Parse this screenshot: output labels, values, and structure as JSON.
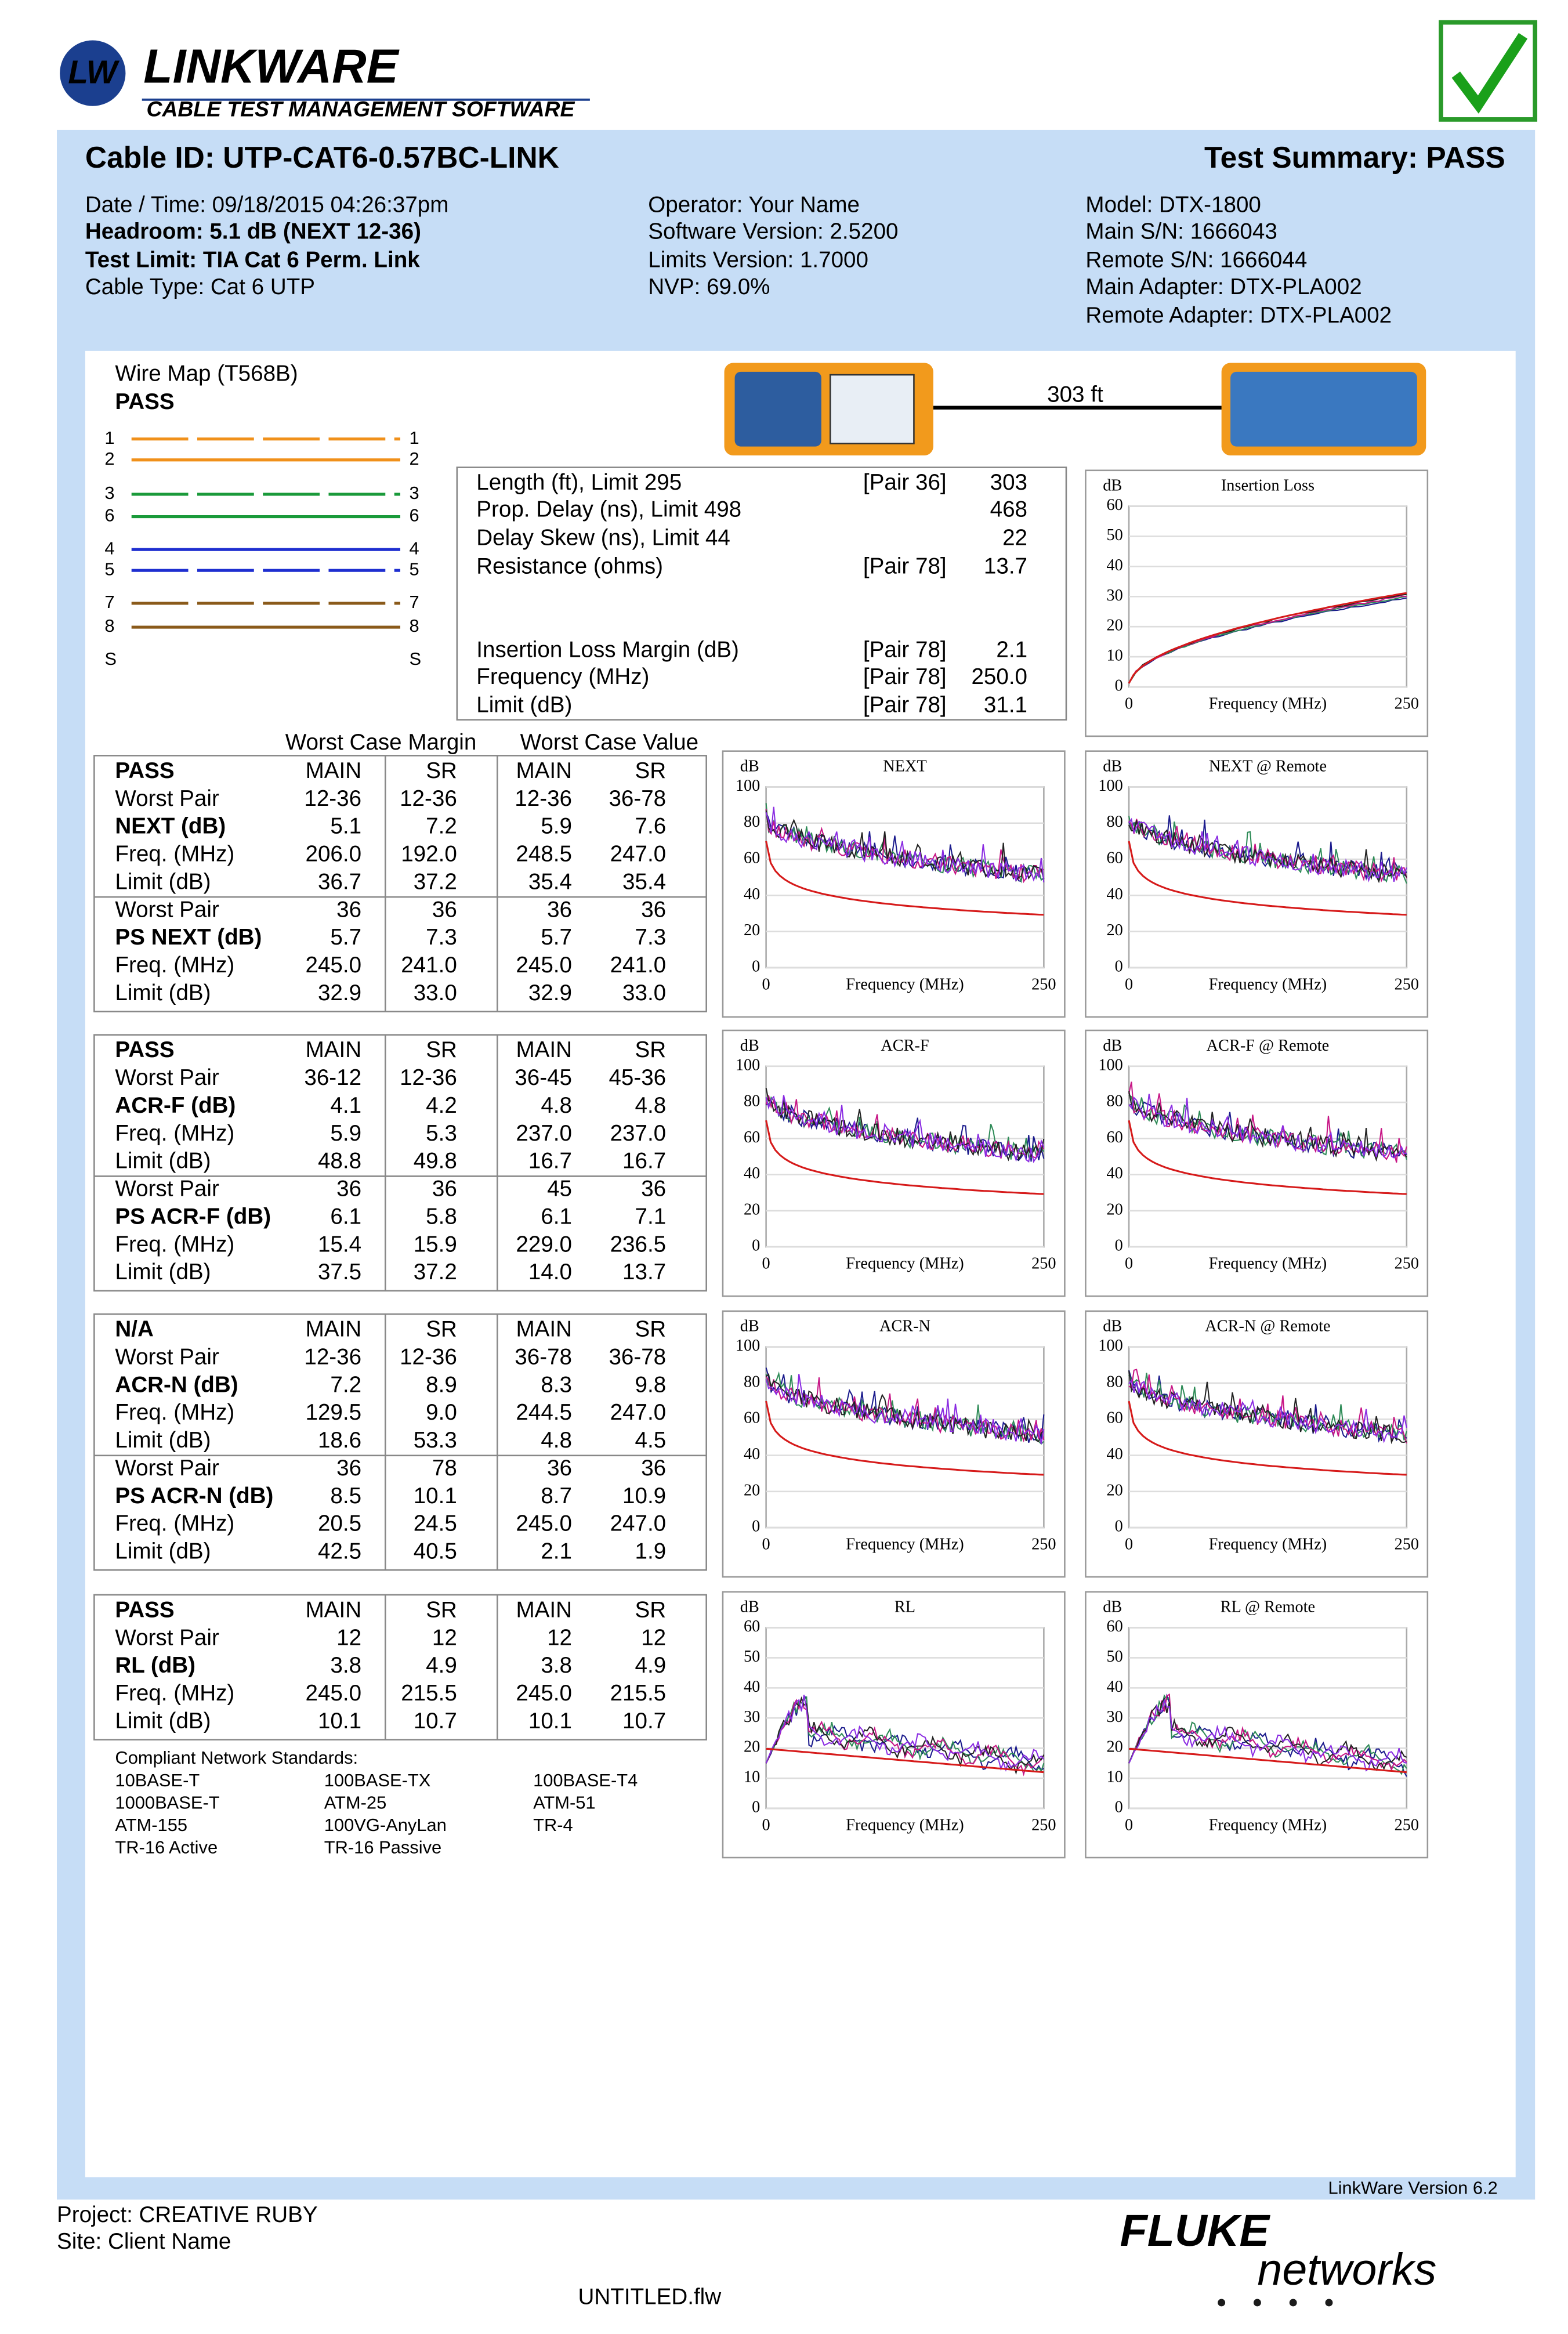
{
  "header": {
    "logo": "LW",
    "brand": "LINKWARE",
    "tagline": "CABLE TEST MANAGEMENT SOFTWARE"
  },
  "summary": {
    "cable_id": "Cable ID: UTP-CAT6-0.57BC-LINK",
    "result": "Test Summary: PASS"
  },
  "info": {
    "left": [
      "Date / Time: 09/18/2015 04:26:37pm",
      "Headroom: 5.1 dB (NEXT 12-36)",
      "Test Limit: TIA Cat 6 Perm. Link",
      "Cable Type: Cat 6 UTP"
    ],
    "middle": [
      "Operator: Your Name",
      "Software Version: 2.5200",
      "Limits Version: 1.7000",
      "NVP: 69.0%"
    ],
    "right": [
      "Model: DTX-1800",
      "Main S/N: 1666043",
      "Remote S/N: 1666044",
      "Main Adapter: DTX-PLA002",
      "Remote Adapter: DTX-PLA002"
    ]
  },
  "wire_map": {
    "title": "Wire Map (T568B)",
    "status": "PASS",
    "pins": [
      "1",
      "2",
      "3",
      "6",
      "4",
      "5",
      "7",
      "8",
      "S"
    ]
  },
  "length": "303 ft",
  "length_table": {
    "rows": [
      [
        "Length (ft), Limit 295",
        "[Pair 36]",
        "303"
      ],
      [
        "Prop. Delay (ns), Limit 498",
        "468"
      ],
      [
        "Delay Skew (ns), Limit 44",
        "22"
      ],
      [
        "Resistance (ohms)",
        "[Pair 78]",
        "13.7"
      ],
      [
        "Insertion Loss Margin (dB)",
        "[Pair 78]",
        "2.1"
      ],
      [
        "Frequency (MHz)",
        "[Pair 78]",
        "250.0"
      ],
      [
        "Limit (dB)",
        "[Pair 78]",
        "31.1"
      ]
    ]
  },
  "results": {
    "headings": [
      "Worst Case Margin",
      "Worst Case Value"
    ],
    "blocks": [
      [
        [
          "PASS",
          "MAIN",
          "SR",
          "MAIN",
          "SR"
        ],
        [
          "Worst Pair",
          "12-36",
          "12-36",
          "12-36",
          "36-78"
        ],
        [
          "NEXT (dB)",
          "5.1",
          "7.2",
          "5.9",
          "7.6"
        ],
        [
          "Freq. (MHz)",
          "206.0",
          "192.0",
          "248.5",
          "247.0"
        ],
        [
          "Limit (dB)",
          "36.7",
          "37.2",
          "35.4",
          "35.4"
        ],
        [
          "Worst Pair",
          "36",
          "36",
          "36",
          "36"
        ],
        [
          "PS NEXT (dB)",
          "5.7",
          "7.3",
          "5.7",
          "7.3"
        ],
        [
          "Freq. (MHz)",
          "245.0",
          "241.0",
          "245.0",
          "241.0"
        ],
        [
          "Limit (dB)",
          "32.9",
          "33.0",
          "32.9",
          "33.0"
        ]
      ],
      [
        [
          "PASS",
          "MAIN",
          "SR",
          "MAIN",
          "SR"
        ],
        [
          "Worst Pair",
          "36-12",
          "12-36",
          "36-45",
          "45-36"
        ],
        [
          "ACR-F (dB)",
          "4.1",
          "4.2",
          "4.8",
          "4.8"
        ],
        [
          "Freq. (MHz)",
          "5.9",
          "5.3",
          "237.0",
          "237.0"
        ],
        [
          "Limit (dB)",
          "48.8",
          "49.8",
          "16.7",
          "16.7"
        ],
        [
          "Worst Pair",
          "36",
          "36",
          "45",
          "36"
        ],
        [
          "PS ACR-F (dB)",
          "6.1",
          "5.8",
          "6.1",
          "7.1"
        ],
        [
          "Freq. (MHz)",
          "15.4",
          "15.9",
          "229.0",
          "236.5"
        ],
        [
          "Limit (dB)",
          "37.5",
          "37.2",
          "14.0",
          "13.7"
        ]
      ],
      [
        [
          "N/A",
          "MAIN",
          "SR",
          "MAIN",
          "SR"
        ],
        [
          "Worst Pair",
          "12-36",
          "12-36",
          "36-78",
          "36-78"
        ],
        [
          "ACR-N (dB)",
          "7.2",
          "8.9",
          "8.3",
          "9.8"
        ],
        [
          "Freq. (MHz)",
          "129.5",
          "9.0",
          "244.5",
          "247.0"
        ],
        [
          "Limit (dB)",
          "18.6",
          "53.3",
          "4.8",
          "4.5"
        ],
        [
          "Worst Pair",
          "36",
          "78",
          "36",
          "36"
        ],
        [
          "PS ACR-N (dB)",
          "8.5",
          "10.1",
          "8.7",
          "10.9"
        ],
        [
          "Freq. (MHz)",
          "20.5",
          "24.5",
          "245.0",
          "247.0"
        ],
        [
          "Limit (dB)",
          "42.5",
          "40.5",
          "2.1",
          "1.9"
        ]
      ],
      [
        [
          "PASS",
          "MAIN",
          "SR",
          "MAIN",
          "SR"
        ],
        [
          "Worst Pair",
          "12",
          "12",
          "12",
          "12"
        ],
        [
          "RL (dB)",
          "3.8",
          "4.9",
          "3.8",
          "4.9"
        ],
        [
          "Freq. (MHz)",
          "245.0",
          "215.5",
          "245.0",
          "215.5"
        ],
        [
          "Limit (dB)",
          "10.1",
          "10.7",
          "10.1",
          "10.7"
        ]
      ]
    ]
  },
  "standards": {
    "title": "Compliant Network Standards:",
    "items": [
      "10BASE-T",
      "100BASE-TX",
      "100BASE-T4",
      "1000BASE-T",
      "ATM-25",
      "ATM-51",
      "ATM-155",
      "100VG-AnyLan",
      "TR-4",
      "TR-16 Active",
      "TR-16 Passive"
    ]
  },
  "charts": [
    {
      "title": "Insertion Loss",
      "unit": "dB",
      "yticks": [
        0,
        10,
        20,
        30,
        40,
        50,
        60
      ],
      "xticks": [
        0,
        250
      ],
      "xlabel": "Frequency (MHz)"
    },
    {
      "title": "NEXT",
      "unit": "dB",
      "yticks": [
        0,
        20,
        40,
        60,
        80,
        100
      ],
      "xticks": [
        0,
        250
      ],
      "xlabel": "Frequency (MHz)"
    },
    {
      "title": "NEXT @ Remote",
      "unit": "dB",
      "yticks": [
        0,
        20,
        40,
        60,
        80,
        100
      ],
      "xticks": [
        0,
        250
      ],
      "xlabel": "Frequency (MHz)"
    },
    {
      "title": "ACR-F",
      "unit": "dB",
      "yticks": [
        0,
        20,
        40,
        60,
        80,
        100
      ],
      "xticks": [
        0,
        250
      ],
      "xlabel": "Frequency (MHz)"
    },
    {
      "title": "ACR-F @ Remote",
      "unit": "dB",
      "yticks": [
        0,
        20,
        40,
        60,
        80,
        100
      ],
      "xticks": [
        0,
        250
      ],
      "xlabel": "Frequency (MHz)"
    },
    {
      "title": "ACR-N",
      "unit": "dB",
      "yticks": [
        0,
        20,
        40,
        60,
        80,
        100
      ],
      "xticks": [
        0,
        250
      ],
      "xlabel": "Frequency (MHz)"
    },
    {
      "title": "ACR-N @ Remote",
      "unit": "dB",
      "yticks": [
        0,
        20,
        40,
        60,
        80,
        100
      ],
      "xticks": [
        0,
        250
      ],
      "xlabel": "Frequency (MHz)"
    },
    {
      "title": "RL",
      "unit": "dB",
      "yticks": [
        0,
        10,
        20,
        30,
        40,
        50,
        60
      ],
      "xticks": [
        0,
        250
      ],
      "xlabel": "Frequency (MHz)"
    },
    {
      "title": "RL @ Remote",
      "unit": "dB",
      "yticks": [
        0,
        10,
        20,
        30,
        40,
        50,
        60
      ],
      "xticks": [
        0,
        250
      ],
      "xlabel": "Frequency (MHz)"
    }
  ],
  "footer": {
    "version": "LinkWare Version  6.2",
    "project": "Project: CREATIVE RUBY",
    "site": "Site: Client Name",
    "file": "UNTITLED.flw",
    "fluke": "FLUKE",
    "networks": "networks"
  }
}
